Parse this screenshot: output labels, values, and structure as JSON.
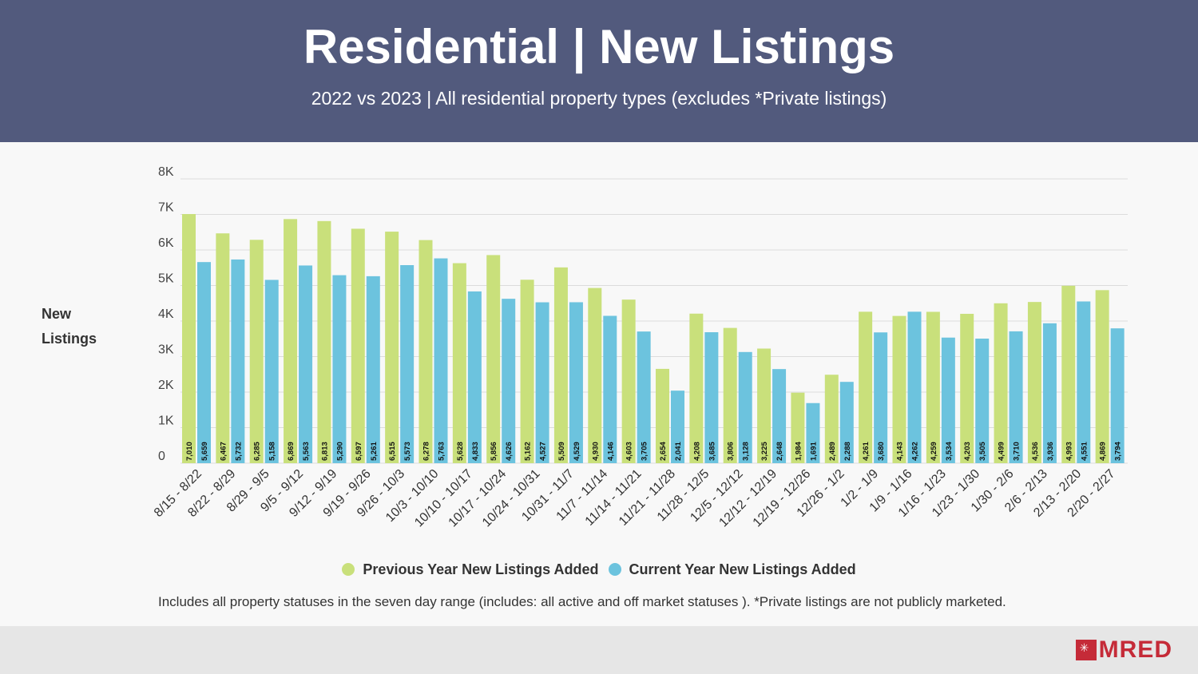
{
  "header": {
    "title": "Residential | New Listings",
    "subtitle": "2022 vs 2023 | All residential property types (excludes *Private listings)"
  },
  "y_axis_title_line1": "New",
  "y_axis_title_line2": "Listings",
  "legend": {
    "previous_label": "Previous Year New Listings Added",
    "current_label": "Current Year New Listings Added"
  },
  "footnote": "Includes all property statuses in the seven day range (includes: all active and off market statuses ). *Private listings are not publicly marketed.",
  "logo": {
    "text": "MRED"
  },
  "colors": {
    "header_bg": "#525a7d",
    "previous": "#c9e07b",
    "current": "#6cc3de",
    "brand": "#c52b38"
  },
  "chart_data": {
    "type": "bar",
    "title": "Residential | New Listings",
    "ylabel": "New Listings",
    "ylim": [
      0,
      8000
    ],
    "yticks": [
      "0",
      "1K",
      "2K",
      "3K",
      "4K",
      "5K",
      "6K",
      "7K",
      "8K"
    ],
    "categories": [
      "8/15 - 8/22",
      "8/22 - 8/29",
      "8/29 - 9/5",
      "9/5 - 9/12",
      "9/12 - 9/19",
      "9/19 - 9/26",
      "9/26 - 10/3",
      "10/3 - 10/10",
      "10/10 - 10/17",
      "10/17 - 10/24",
      "10/24 - 10/31",
      "10/31 - 11/7",
      "11/7 - 11/14",
      "11/14 - 11/21",
      "11/21 - 11/28",
      "11/28 - 12/5",
      "12/5 - 12/12",
      "12/12 - 12/19",
      "12/19 - 12/26",
      "12/26 - 1/2",
      "1/2 - 1/9",
      "1/9 - 1/16",
      "1/16 - 1/23",
      "1/23 - 1/30",
      "1/30 - 2/6",
      "2/6 - 2/13",
      "2/13 - 2/20",
      "2/20 - 2/27"
    ],
    "series": [
      {
        "name": "Previous Year New Listings Added",
        "values": [
          7010,
          6467,
          6285,
          6869,
          6813,
          6597,
          6515,
          6278,
          5628,
          5856,
          5162,
          5509,
          4930,
          4603,
          2654,
          4208,
          3806,
          3225,
          1984,
          2489,
          4261,
          4143,
          4259,
          4203,
          4499,
          4536,
          4993,
          4869
        ]
      },
      {
        "name": "Current Year New Listings Added",
        "values": [
          5659,
          5732,
          5158,
          5563,
          5290,
          5261,
          5573,
          5763,
          4833,
          4626,
          4527,
          4529,
          4146,
          3705,
          2041,
          3685,
          3128,
          2648,
          1691,
          2288,
          3680,
          4262,
          3534,
          3505,
          3710,
          3936,
          4551,
          3794
        ]
      }
    ]
  }
}
